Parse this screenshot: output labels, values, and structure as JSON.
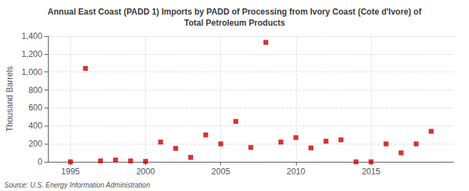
{
  "chart_data": {
    "type": "scatter",
    "title": "Annual East Coast (PADD 1) Imports by PADD of Processing from Ivory Coast (Cote d'Ivore) of\nTotal Petroleum Products",
    "ylabel": "Thousand Barrels",
    "source": "Source: U.S. Energy Information Administration",
    "x": [
      1995,
      1996,
      1997,
      1998,
      1999,
      2000,
      2001,
      2002,
      2003,
      2004,
      2005,
      2006,
      2007,
      2008,
      2009,
      2010,
      2011,
      2012,
      2013,
      2014,
      2015,
      2016,
      2017,
      2018,
      2019
    ],
    "values": [
      0,
      1040,
      10,
      20,
      10,
      5,
      220,
      150,
      50,
      300,
      200,
      450,
      160,
      1330,
      220,
      270,
      155,
      230,
      245,
      0,
      0,
      200,
      100,
      200,
      340
    ],
    "color": "#cc0000",
    "marker": "square",
    "xlim": [
      1993.5,
      2020.5
    ],
    "xticks": [
      1995,
      2000,
      2005,
      2010,
      2015
    ],
    "ylim": [
      0,
      1400
    ],
    "yticks": [
      0,
      200,
      400,
      600,
      800,
      {
        "value": 1000,
        "label": "1,000"
      },
      {
        "value": 1200,
        "label": "1,200"
      },
      {
        "value": 1400,
        "label": "1,400"
      }
    ],
    "grid": true
  }
}
